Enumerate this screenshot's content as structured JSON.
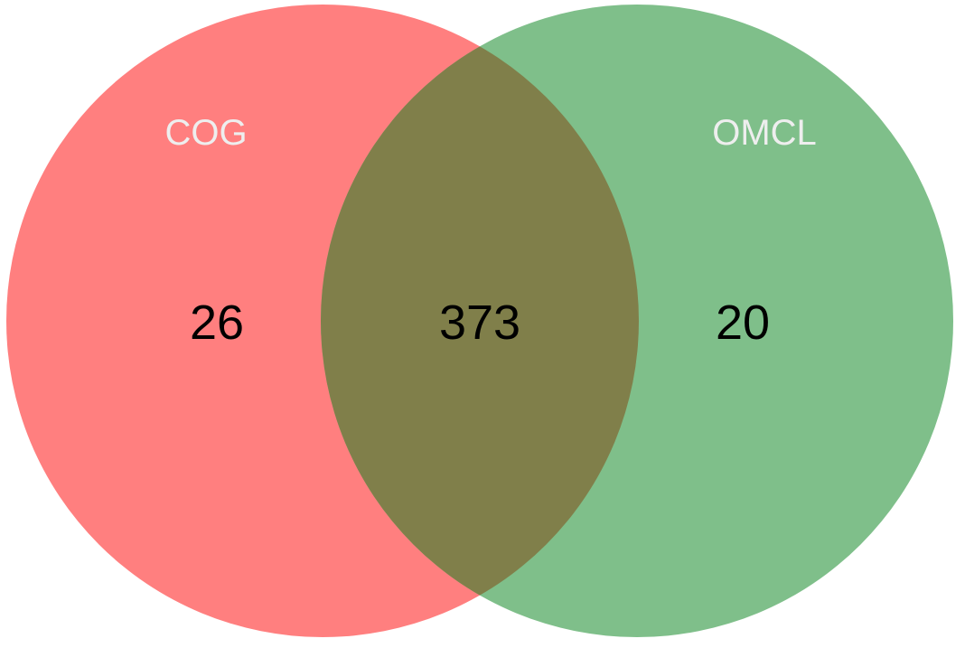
{
  "chart_data": {
    "type": "venn",
    "sets": [
      {
        "name": "COG",
        "color": "#ff7f7f"
      },
      {
        "name": "OMCL",
        "color": "#7fbf8a"
      }
    ],
    "regions": {
      "cog_only": 26,
      "intersection": 373,
      "omcl_only": 20
    },
    "intersection_color": "#807f4a",
    "set_label_color": "#eeeeee",
    "count_label_color": "#000000"
  }
}
